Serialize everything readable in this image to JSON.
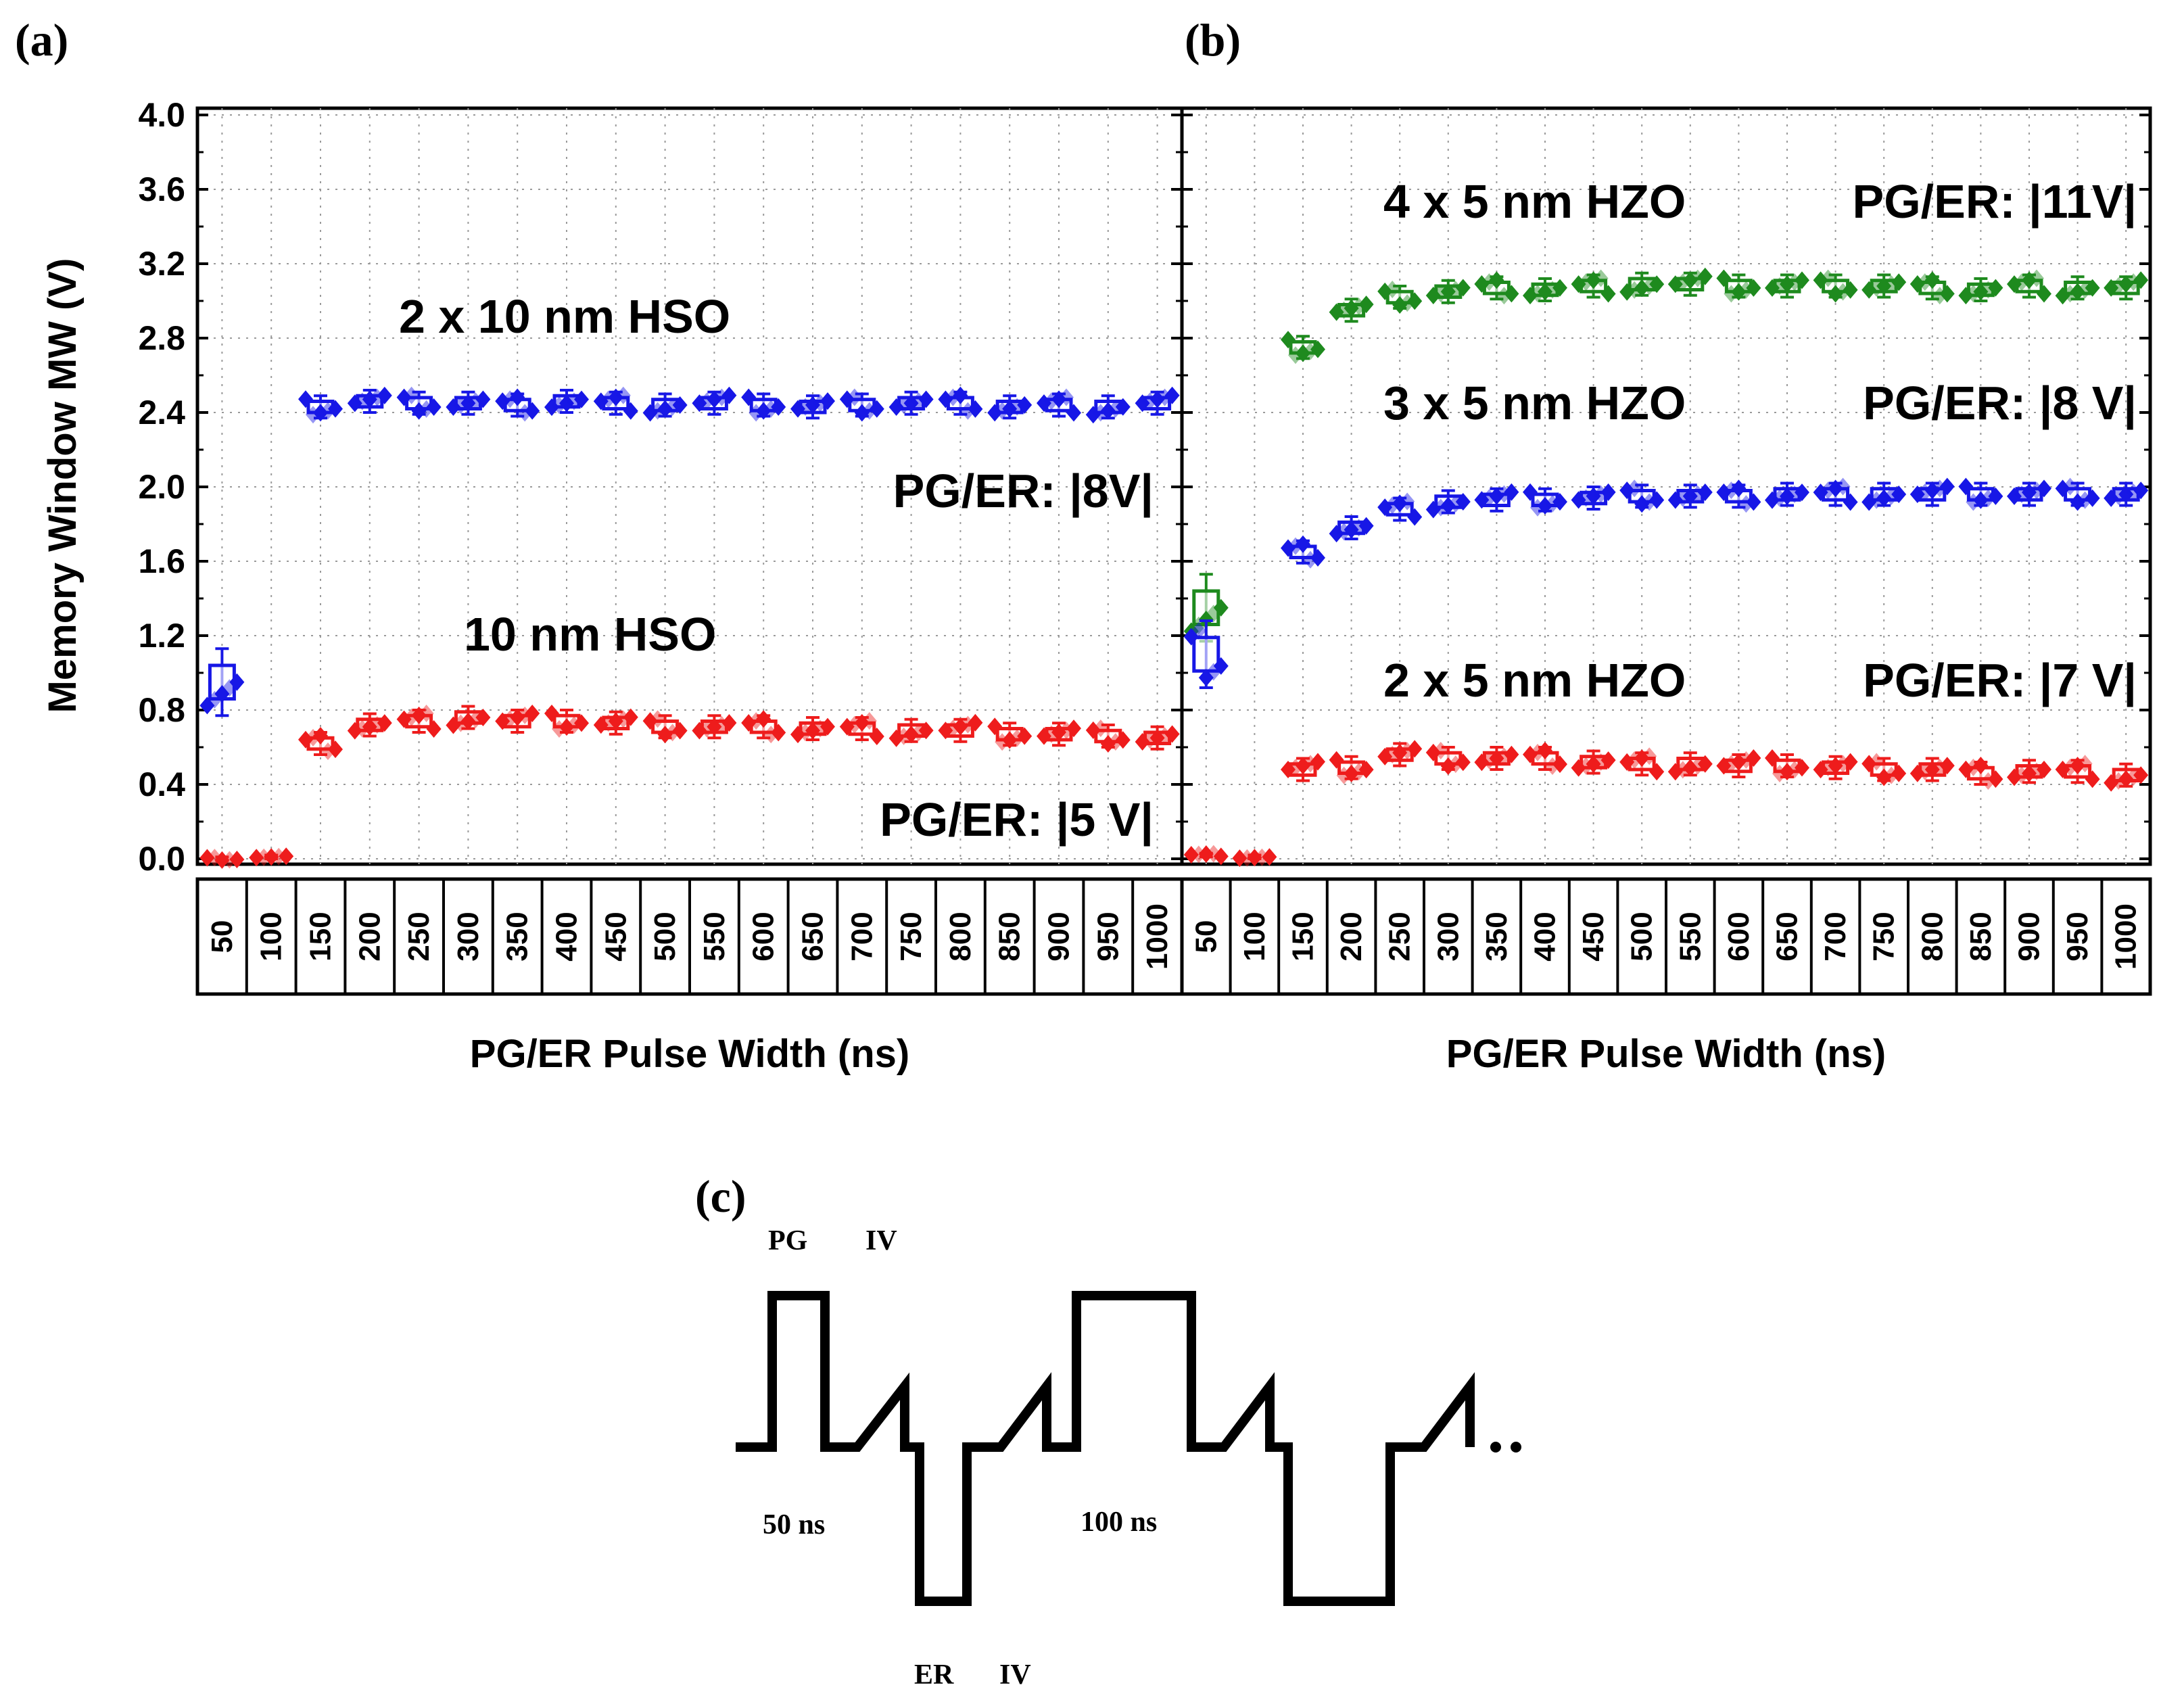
{
  "colors": {
    "red": "#ee1c1c",
    "blue": "#1717e6",
    "green": "#1e8a1e",
    "axis": "#000000"
  },
  "chart_data": [
    {
      "panel": "(a)",
      "type": "box",
      "ylabel": "Memory Window MW (V)",
      "xlabel": "PG/ER Pulse Width (ns)",
      "ylim": [
        0.0,
        4.0
      ],
      "yticks": [
        "0.0",
        "0.4",
        "0.8",
        "1.2",
        "1.6",
        "2.0",
        "2.4",
        "2.8",
        "3.2",
        "3.6",
        "4.0"
      ],
      "categories": [
        "50",
        "100",
        "150",
        "200",
        "250",
        "300",
        "350",
        "400",
        "450",
        "500",
        "550",
        "600",
        "650",
        "700",
        "750",
        "800",
        "850",
        "900",
        "950",
        "1000"
      ],
      "annotations": [
        "2 x 10 nm HSO",
        "PG/ER: |8V|",
        "10 nm HSO",
        "PG/ER: |5 V|"
      ],
      "series": [
        {
          "name": "2 x 10 nm HSO",
          "color": "blue",
          "values": [
            0.95,
            null,
            2.43,
            2.46,
            2.45,
            2.45,
            2.44,
            2.46,
            2.45,
            2.44,
            2.45,
            2.44,
            2.43,
            2.44,
            2.45,
            2.45,
            2.43,
            2.44,
            2.43,
            2.45
          ]
        },
        {
          "name": "10 nm HSO",
          "color": "red",
          "values": [
            0.0,
            0.01,
            0.62,
            0.72,
            0.74,
            0.76,
            0.74,
            0.74,
            0.73,
            0.71,
            0.71,
            0.71,
            0.7,
            0.7,
            0.69,
            0.69,
            0.67,
            0.67,
            0.66,
            0.65
          ]
        }
      ]
    },
    {
      "panel": "(b)",
      "type": "box",
      "ylabel": "",
      "xlabel": "PG/ER Pulse Width (ns)",
      "ylim": [
        0.0,
        4.0
      ],
      "categories": [
        "50",
        "100",
        "150",
        "200",
        "250",
        "300",
        "350",
        "400",
        "450",
        "500",
        "550",
        "600",
        "650",
        "700",
        "750",
        "800",
        "850",
        "900",
        "950",
        "1000"
      ],
      "annotations": [
        "4 x 5 nm HZO",
        "PG/ER: |11V|",
        "3 x 5 nm HZO",
        "PG/ER: |8 V|",
        "2 x 5 nm HZO",
        "PG/ER: |7 V|"
      ],
      "series": [
        {
          "name": "4 x 5 nm HZO",
          "color": "green",
          "values": [
            1.35,
            null,
            2.75,
            2.95,
            3.02,
            3.05,
            3.07,
            3.06,
            3.08,
            3.09,
            3.09,
            3.08,
            3.08,
            3.08,
            3.08,
            3.07,
            3.06,
            3.08,
            3.07,
            3.07
          ]
        },
        {
          "name": "3 x 5 nm HZO",
          "color": "blue",
          "values": [
            1.1,
            null,
            1.65,
            1.78,
            1.88,
            1.92,
            1.93,
            1.93,
            1.94,
            1.95,
            1.95,
            1.95,
            1.96,
            1.96,
            1.96,
            1.96,
            1.96,
            1.96,
            1.96,
            1.96
          ]
        },
        {
          "name": "2 x 5 nm HZO",
          "color": "red",
          "values": [
            0.02,
            0.01,
            0.48,
            0.49,
            0.56,
            0.54,
            0.54,
            0.54,
            0.52,
            0.51,
            0.51,
            0.5,
            0.5,
            0.49,
            0.48,
            0.48,
            0.46,
            0.47,
            0.47,
            0.45
          ]
        }
      ]
    }
  ],
  "waveform": {
    "panel": "(c)",
    "labels": {
      "pg": "PG",
      "iv_top": "IV",
      "pw1": "50 ns",
      "pw2": "100 ns",
      "er": "ER",
      "iv_bottom": "IV",
      "ellipsis": ".."
    }
  }
}
